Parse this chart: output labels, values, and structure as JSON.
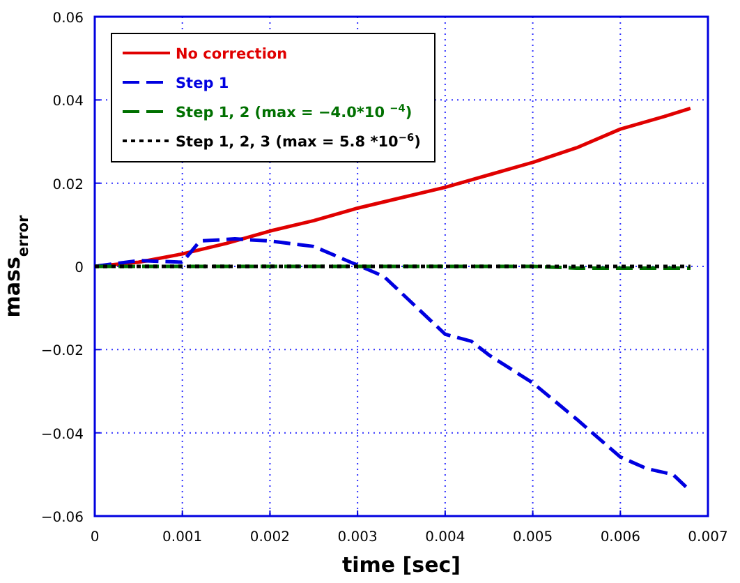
{
  "chart_data": {
    "type": "line",
    "xlabel": "time [sec]",
    "ylabel": "mass$_{error}$",
    "xlim": [
      0,
      0.007
    ],
    "xticks": [
      0,
      0.001,
      0.002,
      0.003,
      0.004,
      0.005,
      0.006,
      0.007
    ],
    "ylim": [
      -0.06,
      0.06
    ],
    "yticks": [
      {
        "value": -0.06,
        "label": "−0.06"
      },
      {
        "value": -0.04,
        "label": "−0.04"
      },
      {
        "value": -0.02,
        "label": "−0.02"
      },
      0,
      0.02,
      0.04,
      0.06
    ],
    "grid": true,
    "legend": "top left",
    "marker": "none",
    "series": [
      {
        "name": "No correction",
        "color": "#e00000",
        "line_style": "solid",
        "x": [
          0,
          0.0005,
          0.001,
          0.0015,
          0.002,
          0.0025,
          0.003,
          0.0035,
          0.004,
          0.0045,
          0.005,
          0.0055,
          0.006,
          0.0065,
          0.0068
        ],
        "values": [
          0,
          0.001,
          0.003,
          0.0055,
          0.0085,
          0.011,
          0.014,
          0.0165,
          0.019,
          0.022,
          0.025,
          0.0285,
          0.033,
          0.036,
          0.038
        ]
      },
      {
        "name": "Step 1",
        "color": "#0000e0",
        "line_style": "dashed",
        "x": [
          0,
          0.0005,
          0.001,
          0.0012,
          0.0016,
          0.002,
          0.0025,
          0.003,
          0.0033,
          0.004,
          0.0043,
          0.0045,
          0.005,
          0.0055,
          0.006,
          0.0063,
          0.0066,
          0.0068
        ],
        "values": [
          0,
          0.0014,
          0.001,
          0.0061,
          0.0066,
          0.0061,
          0.0048,
          0.0003,
          -0.0024,
          -0.0163,
          -0.018,
          -0.0213,
          -0.028,
          -0.0367,
          -0.0458,
          -0.0486,
          -0.05,
          -0.054
        ]
      },
      {
        "name": "Step 1, 2 (max = −4.0*10 $^{−4}$)",
        "color": "#007000",
        "line_style": "dashed",
        "x": [
          0,
          0.005,
          0.0055,
          0.0068
        ],
        "values": [
          0,
          0,
          -0.0004,
          -0.0004
        ]
      },
      {
        "name": "Step 1, 2, 3 (max = 5.8 *10$^{−6}$)",
        "color": "#000000",
        "line_style": "dotted",
        "x": [
          0,
          0.0068
        ],
        "values": [
          0,
          0
        ]
      }
    ]
  }
}
